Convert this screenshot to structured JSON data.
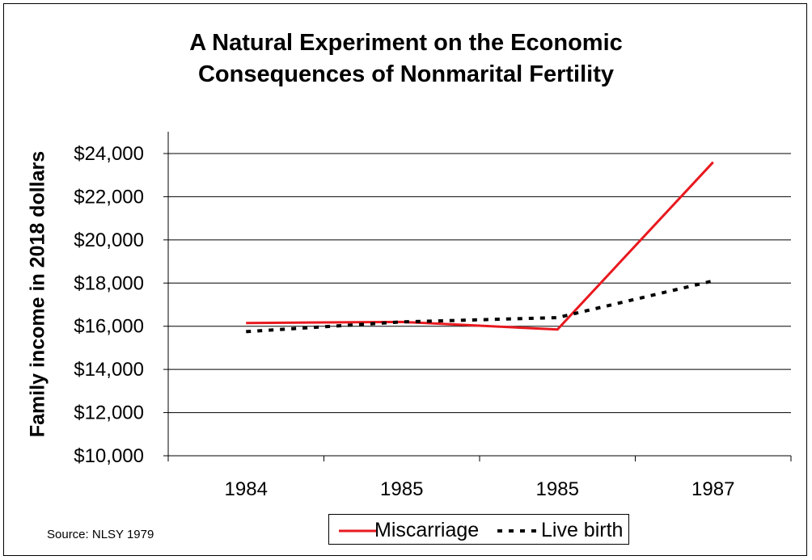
{
  "title_line1": "A Natural Experiment on the Economic",
  "title_line2": "Consequences of Nonmarital Fertility",
  "source": "Source: NLSY 1979",
  "chart_data": {
    "type": "line",
    "title": "A Natural Experiment on the Economic Consequences of Nonmarital Fertility",
    "xlabel": "",
    "ylabel": "Family income in 2018 dollars",
    "categories": [
      "1984",
      "1985",
      "1985",
      "1987"
    ],
    "ylim": [
      10000,
      24000
    ],
    "ytick_values": [
      10000,
      12000,
      14000,
      16000,
      18000,
      20000,
      22000,
      24000
    ],
    "ytick_labels": [
      "$10,000",
      "$12,000",
      "$14,000",
      "$16,000",
      "$18,000",
      "$20,000",
      "$22,000",
      "$24,000"
    ],
    "grid": true,
    "legend_position": "bottom",
    "series": [
      {
        "name": "Miscarriage",
        "values": [
          16150,
          16200,
          15850,
          23600
        ],
        "color": "#e8191f",
        "style": "solid"
      },
      {
        "name": "Live birth",
        "values": [
          15750,
          16200,
          16400,
          18100
        ],
        "color": "#000000",
        "style": "dashed"
      }
    ]
  }
}
